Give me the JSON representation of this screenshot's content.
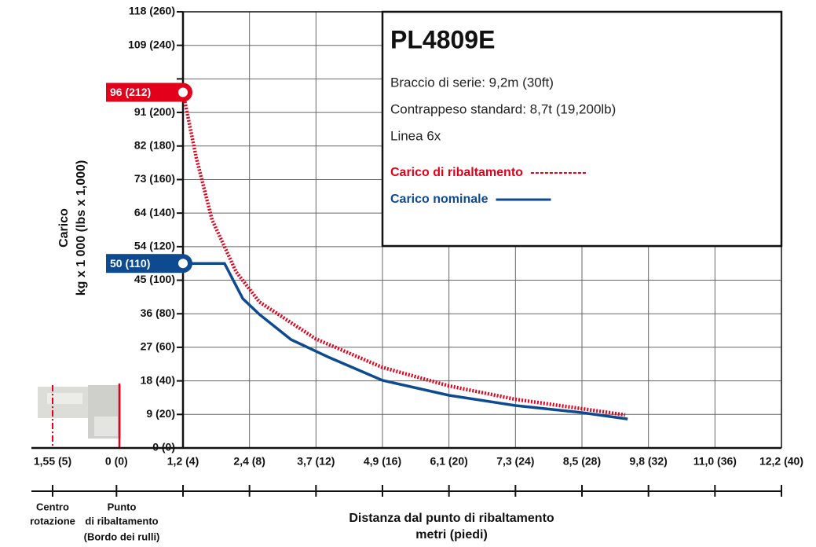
{
  "chart_data": {
    "type": "line",
    "title": "PL4809E",
    "info_lines": [
      "Braccio di serie: 9,2m (30ft)",
      "Contrappeso standard: 8,7t (19,200lb)",
      "Linea 6x"
    ],
    "x_label": [
      "Distanza dal punto di ribaltamento",
      "metri (piedi)"
    ],
    "y_label": [
      "Carico",
      "kg x 1 000 (lbs x 1,000)"
    ],
    "rotation_center": {
      "label": "1,55 (5)",
      "caption": [
        "Centro",
        "rotazione"
      ]
    },
    "tipping_point_caption": [
      "Punto",
      "di ribaltamento",
      "(Bordo dei rulli)"
    ],
    "xlim": [
      4,
      40
    ],
    "ylim": [
      0,
      260
    ],
    "xticks": [
      {
        "value": 0,
        "label": "0 (0)"
      },
      {
        "value": 4,
        "label": "1,2 (4)"
      },
      {
        "value": 8,
        "label": "2,4 (8)"
      },
      {
        "value": 12,
        "label": "3,7 (12)"
      },
      {
        "value": 16,
        "label": "4,9 (16)"
      },
      {
        "value": 20,
        "label": "6,1 (20)"
      },
      {
        "value": 24,
        "label": "7,3 (24)"
      },
      {
        "value": 28,
        "label": "8,5 (28)"
      },
      {
        "value": 32,
        "label": "9,8 (32)"
      },
      {
        "value": 36,
        "label": "11,0 (36)"
      },
      {
        "value": 40,
        "label": "12,2 (40)"
      }
    ],
    "yticks": [
      {
        "value": 0,
        "label": "0 (0)"
      },
      {
        "value": 20,
        "label": "9 (20)"
      },
      {
        "value": 40,
        "label": "18 (40)"
      },
      {
        "value": 60,
        "label": "27 (60)"
      },
      {
        "value": 80,
        "label": "36 (80)"
      },
      {
        "value": 100,
        "label": "45 (100)"
      },
      {
        "value": 120,
        "label": "54 (120)"
      },
      {
        "value": 140,
        "label": "64 (140)"
      },
      {
        "value": 160,
        "label": "73 (160)"
      },
      {
        "value": 180,
        "label": "82 (180)"
      },
      {
        "value": 200,
        "label": "91 (200)"
      },
      220,
      {
        "value": 240,
        "label": "109 (240)"
      },
      {
        "value": 260,
        "label": "118 (260)"
      }
    ],
    "grid": true,
    "series": [
      {
        "name": "Carico di ribaltamento",
        "color": "#e3001b",
        "style": "dotted",
        "marker_label": "96 (212)",
        "x": [
          4,
          4.8,
          5.75,
          7.2,
          8.6,
          12,
          16,
          20,
          24,
          28,
          30.6
        ],
        "values": [
          212,
          173,
          136,
          105,
          87,
          65,
          48,
          37,
          29,
          23.4,
          19.7
        ]
      },
      {
        "name": "Carico nominale",
        "color": "#0d4a8f",
        "style": "solid",
        "marker_label": "50 (110)",
        "x": [
          4,
          6.5,
          7.6,
          8.6,
          10.5,
          12.8,
          16,
          20,
          24,
          28,
          30.75
        ],
        "values": [
          110,
          110,
          89,
          79.6,
          64.6,
          53.9,
          40.3,
          31.4,
          25.3,
          21.1,
          17.3
        ]
      }
    ]
  }
}
